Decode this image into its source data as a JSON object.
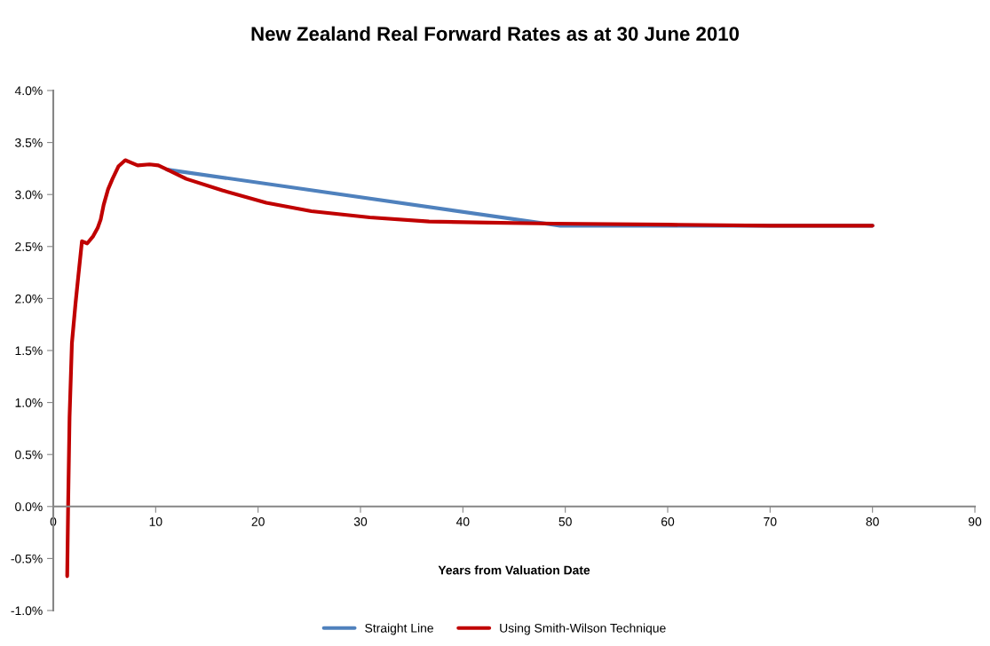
{
  "chart_data": {
    "type": "line",
    "title": "New Zealand Real Forward Rates as at 30 June 2010",
    "xlabel": "Years from Valuation Date",
    "xlim": [
      0,
      90
    ],
    "xticks": [
      0,
      10,
      20,
      30,
      40,
      50,
      60,
      70,
      80,
      90
    ],
    "ylim": [
      -1,
      4
    ],
    "yticks": [
      {
        "value": -1,
        "label": "-1.0%"
      },
      {
        "value": -0.5,
        "label": "-0.5%"
      },
      {
        "value": 0,
        "label": "0.0%"
      },
      {
        "value": 0.5,
        "label": "0.5%"
      },
      {
        "value": 1,
        "label": "1.0%"
      },
      {
        "value": 1.5,
        "label": "1.5%"
      },
      {
        "value": 2,
        "label": "2.0%"
      },
      {
        "value": 2.5,
        "label": "2.5%"
      },
      {
        "value": 3,
        "label": "3.0%"
      },
      {
        "value": 3.5,
        "label": "3.5%"
      },
      {
        "value": 4,
        "label": "4.0%"
      }
    ],
    "grid": false,
    "legend": "bottom",
    "marker": "none",
    "line_style": "solid",
    "series": [
      {
        "name": "Straight Line",
        "color": "#4f81bd",
        "x": [
          11.1,
          49.5,
          80
        ],
        "values": [
          3.24,
          2.7,
          2.7
        ]
      },
      {
        "name": "Using Smith-Wilson Technique",
        "color": "#c00000",
        "x": [
          1.36,
          1.45,
          1.59,
          1.82,
          2.17,
          2.46,
          2.8,
          3.32,
          3.9,
          4.34,
          4.63,
          4.92,
          5.35,
          5.78,
          6.36,
          7.03,
          7.52,
          8.24,
          9.4,
          10.26,
          11.13,
          13.0,
          16.5,
          20.8,
          25.2,
          30.9,
          36.7,
          42.5,
          48.9,
          60,
          70,
          80
        ],
        "values": [
          -0.67,
          0.0,
          0.86,
          1.57,
          1.95,
          2.23,
          2.55,
          2.53,
          2.6,
          2.68,
          2.76,
          2.9,
          3.05,
          3.15,
          3.27,
          3.33,
          3.31,
          3.28,
          3.29,
          3.28,
          3.24,
          3.15,
          3.04,
          2.92,
          2.84,
          2.78,
          2.74,
          2.73,
          2.72,
          2.71,
          2.7,
          2.7
        ]
      }
    ]
  }
}
